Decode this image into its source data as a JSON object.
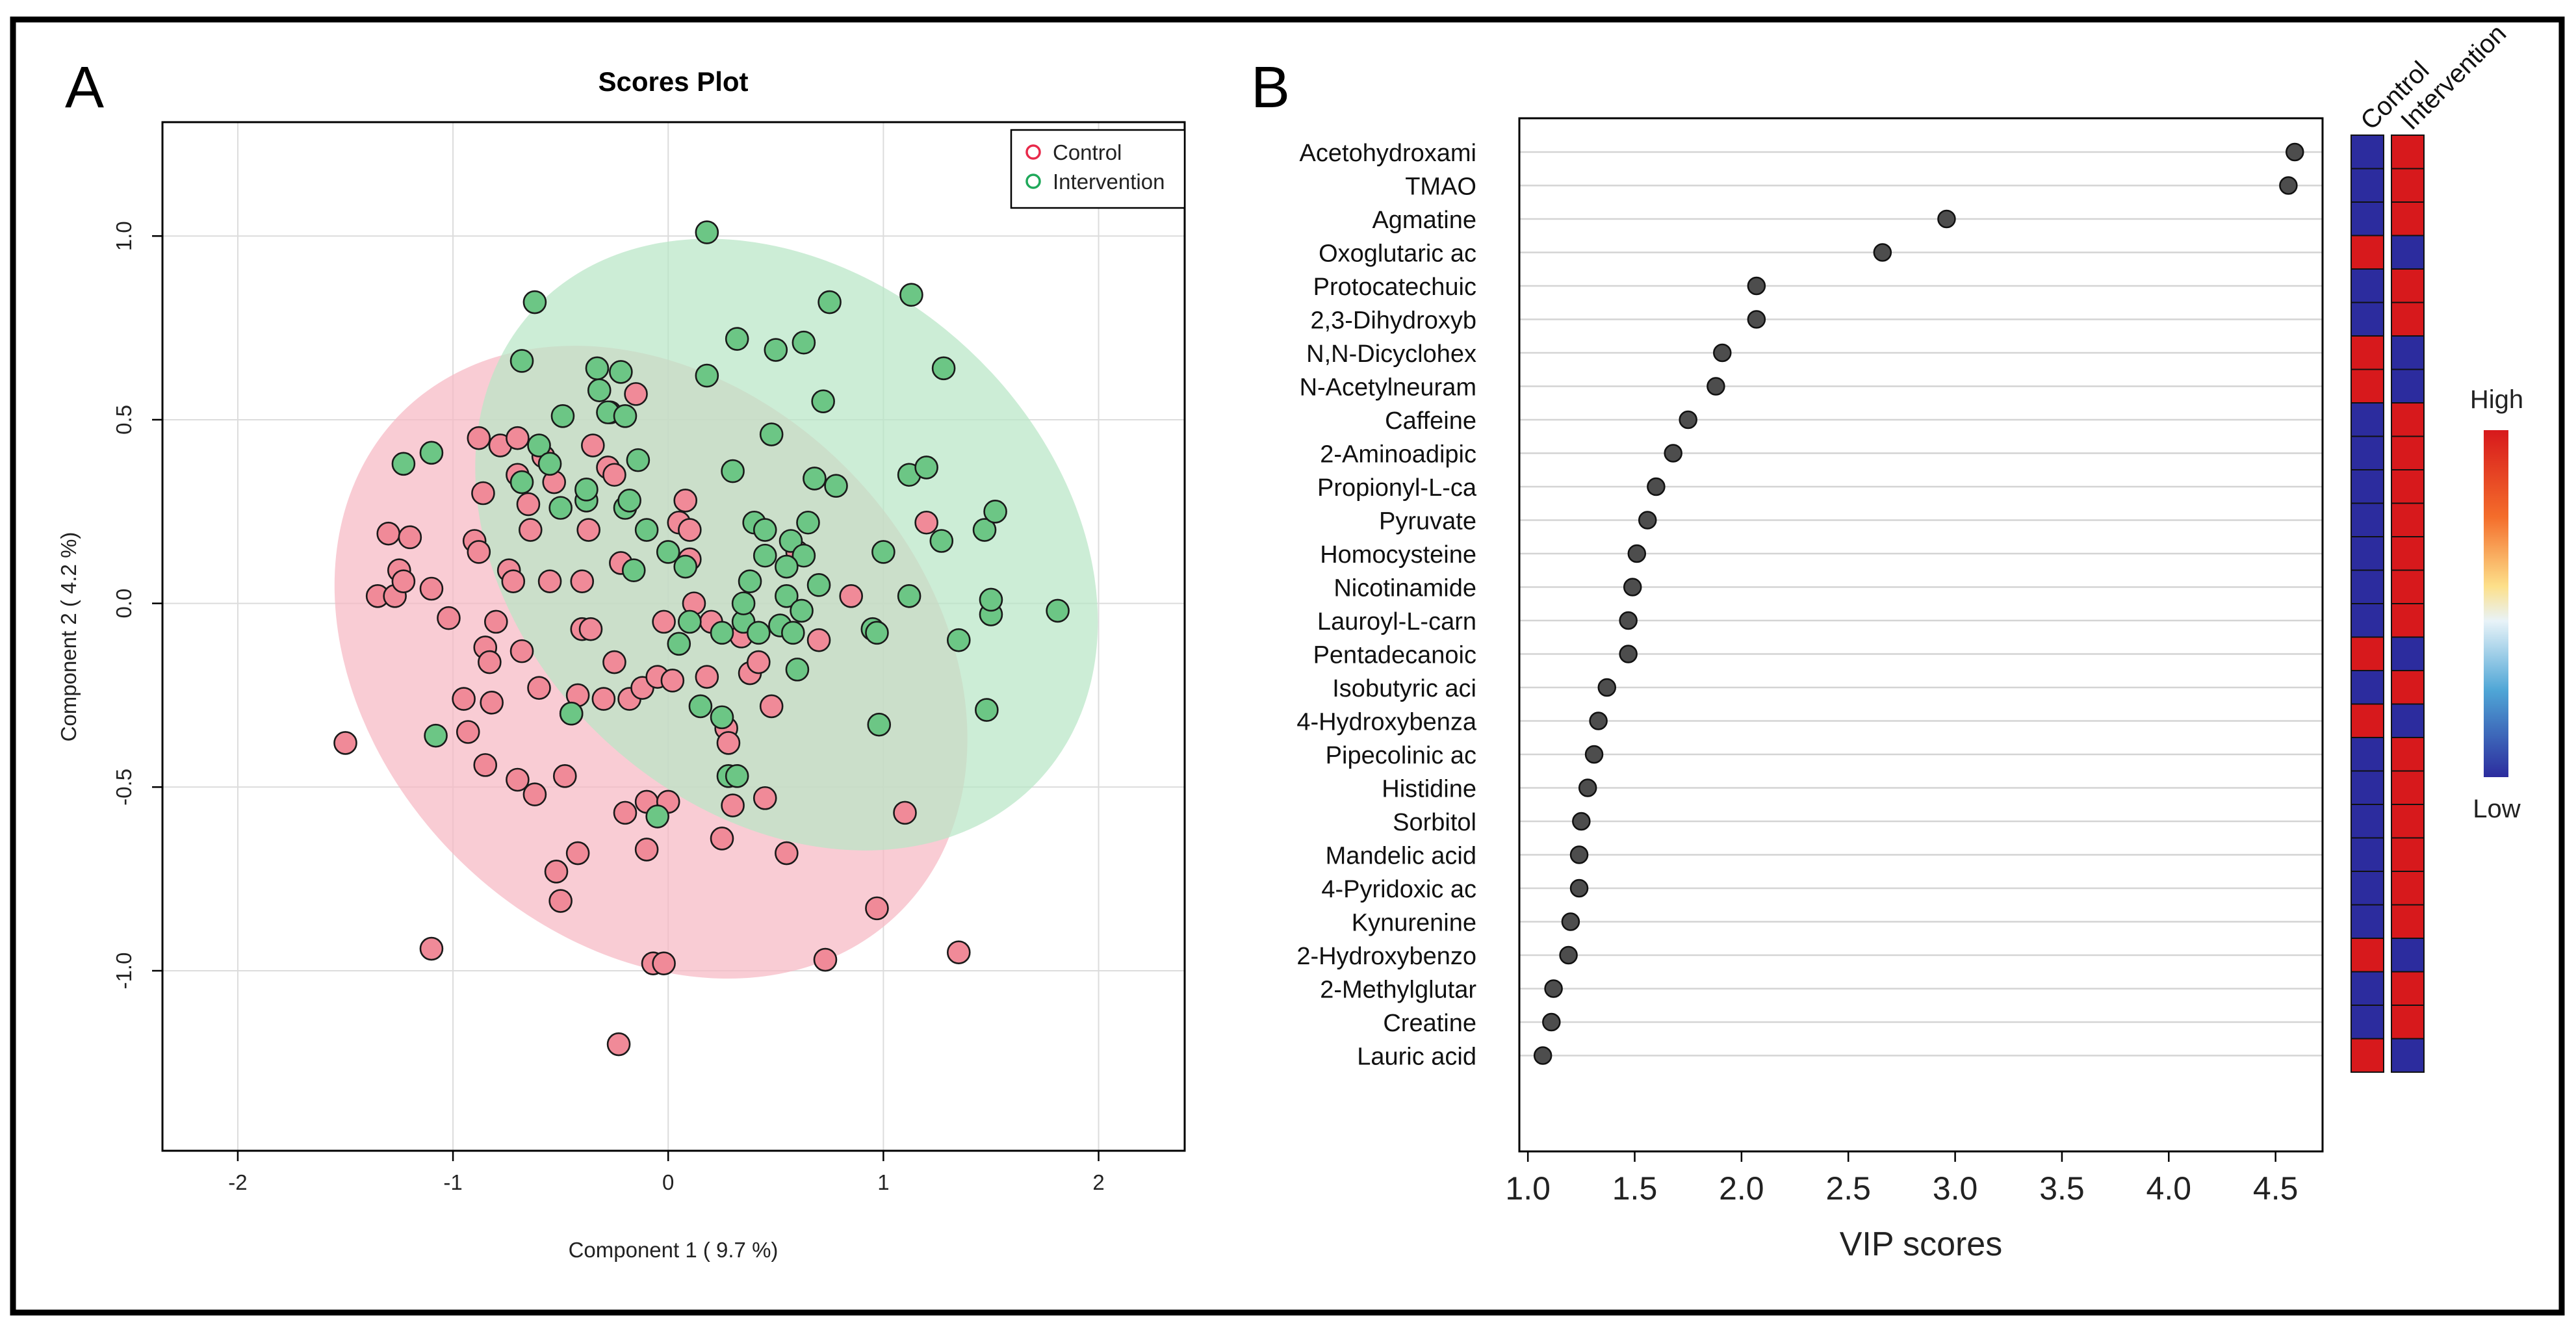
{
  "panel_a": {
    "letter": "A",
    "chart_data": {
      "type": "scatter",
      "title": "Scores Plot",
      "xlabel": "Component 1 ( 9.7 %)",
      "ylabel": "Component 2 ( 4.2 %)",
      "xlim": [
        -2.35,
        2.4
      ],
      "ylim": [
        -1.49,
        1.31
      ],
      "x_ticks": [
        -2,
        -1,
        0,
        1,
        2
      ],
      "x_tick_labels": [
        "-2",
        "-1",
        "0",
        "1",
        "2"
      ],
      "y_ticks": [
        -1.0,
        -0.5,
        0.0,
        0.5,
        1.0
      ],
      "y_tick_labels": [
        "-1.0",
        "-0.5",
        "0.0",
        "0.5",
        "1.0"
      ],
      "grid": true,
      "legend_position": "top-right",
      "legend": [
        "Control",
        "Intervention"
      ],
      "colors": {
        "control_stroke": "#e8294a",
        "control_fill": "#f08a98",
        "control_ellipse": "#f7b9c4",
        "intervention_stroke": "#1fa85a",
        "intervention_fill": "#6cc685",
        "intervention_ellipse": "#b9e6c6",
        "overlap": "#c8b49a"
      },
      "ellipses": [
        {
          "name": "Control",
          "cx": -0.08,
          "cy": -0.16,
          "rx": 1.28,
          "ry": 0.96,
          "angle_deg": -45
        },
        {
          "name": "Intervention",
          "cx": 0.55,
          "cy": 0.16,
          "rx": 1.24,
          "ry": 0.94,
          "angle_deg": -47
        }
      ],
      "series": [
        {
          "name": "Control",
          "points": [
            [
              -1.5,
              -0.38
            ],
            [
              -1.35,
              0.02
            ],
            [
              -1.3,
              0.19
            ],
            [
              -1.27,
              0.02
            ],
            [
              -1.25,
              0.09
            ],
            [
              -1.23,
              0.06
            ],
            [
              -1.2,
              0.18
            ],
            [
              -1.1,
              0.04
            ],
            [
              -1.1,
              -0.94
            ],
            [
              -1.02,
              -0.04
            ],
            [
              -0.95,
              -0.26
            ],
            [
              -0.93,
              -0.35
            ],
            [
              -0.9,
              0.17
            ],
            [
              -0.88,
              0.14
            ],
            [
              -0.88,
              0.45
            ],
            [
              -0.86,
              0.3
            ],
            [
              -0.85,
              -0.12
            ],
            [
              -0.85,
              -0.44
            ],
            [
              -0.83,
              -0.16
            ],
            [
              -0.82,
              -0.27
            ],
            [
              -0.8,
              -0.05
            ],
            [
              -0.78,
              0.43
            ],
            [
              -0.74,
              0.09
            ],
            [
              -0.72,
              0.06
            ],
            [
              -0.7,
              0.45
            ],
            [
              -0.7,
              -0.48
            ],
            [
              -0.68,
              -0.13
            ],
            [
              -0.65,
              0.27
            ],
            [
              -0.64,
              0.2
            ],
            [
              -0.62,
              -0.52
            ],
            [
              -0.6,
              -0.23
            ],
            [
              -0.58,
              0.4
            ],
            [
              -0.55,
              0.06
            ],
            [
              -0.53,
              0.33
            ],
            [
              -0.52,
              -0.73
            ],
            [
              -0.5,
              -0.81
            ],
            [
              -0.48,
              -0.47
            ],
            [
              -0.45,
              -0.3
            ],
            [
              -0.42,
              -0.25
            ],
            [
              -0.42,
              -0.68
            ],
            [
              -0.4,
              0.06
            ],
            [
              -0.4,
              -0.07
            ],
            [
              -0.37,
              0.2
            ],
            [
              -0.36,
              -0.07
            ],
            [
              -0.35,
              0.43
            ],
            [
              -0.3,
              -0.26
            ],
            [
              -0.28,
              0.37
            ],
            [
              -0.27,
              0.52
            ],
            [
              -0.25,
              -0.16
            ],
            [
              -0.23,
              -1.2
            ],
            [
              -0.22,
              0.11
            ],
            [
              -0.2,
              -0.57
            ],
            [
              -0.18,
              -0.26
            ],
            [
              -0.15,
              0.57
            ],
            [
              -0.12,
              -0.23
            ],
            [
              -0.1,
              -0.67
            ],
            [
              -0.1,
              -0.54
            ],
            [
              -0.07,
              -0.98
            ],
            [
              -0.05,
              -0.2
            ],
            [
              -0.02,
              -0.05
            ],
            [
              -0.02,
              -0.98
            ],
            [
              0,
              -0.54
            ],
            [
              0.02,
              -0.21
            ],
            [
              0.05,
              0.22
            ],
            [
              0.08,
              0.28
            ],
            [
              0.1,
              0.12
            ],
            [
              0.12,
              0.0
            ],
            [
              0.18,
              -0.2
            ],
            [
              0.2,
              -0.05
            ],
            [
              0.25,
              -0.64
            ],
            [
              0.27,
              -0.34
            ],
            [
              0.28,
              -0.38
            ],
            [
              0.3,
              -0.55
            ],
            [
              0.34,
              -0.09
            ],
            [
              0.38,
              -0.19
            ],
            [
              0.42,
              -0.16
            ],
            [
              0.48,
              -0.28
            ],
            [
              0.45,
              -0.53
            ],
            [
              0.55,
              -0.68
            ],
            [
              0.6,
              0.14
            ],
            [
              0.7,
              -0.1
            ],
            [
              0.73,
              -0.97
            ],
            [
              0.97,
              -0.83
            ],
            [
              0.85,
              0.02
            ],
            [
              1.1,
              -0.57
            ],
            [
              1.2,
              0.22
            ],
            [
              1.35,
              -0.95
            ],
            [
              -0.7,
              0.35
            ],
            [
              0.1,
              0.2
            ],
            [
              -0.25,
              0.35
            ]
          ]
        },
        {
          "name": "Intervention",
          "points": [
            [
              -1.23,
              0.38
            ],
            [
              -1.1,
              0.41
            ],
            [
              -1.08,
              -0.36
            ],
            [
              -0.68,
              0.66
            ],
            [
              -0.68,
              0.33
            ],
            [
              -0.62,
              0.82
            ],
            [
              -0.6,
              0.43
            ],
            [
              -0.55,
              0.38
            ],
            [
              -0.5,
              0.26
            ],
            [
              -0.49,
              0.51
            ],
            [
              -0.38,
              0.28
            ],
            [
              -0.38,
              0.31
            ],
            [
              -0.33,
              0.64
            ],
            [
              -0.32,
              0.58
            ],
            [
              -0.28,
              0.52
            ],
            [
              -0.22,
              0.63
            ],
            [
              -0.2,
              0.51
            ],
            [
              -0.2,
              0.26
            ],
            [
              -0.18,
              0.28
            ],
            [
              -0.16,
              0.09
            ],
            [
              -0.14,
              0.39
            ],
            [
              -0.1,
              0.2
            ],
            [
              -0.05,
              -0.58
            ],
            [
              0,
              0.14
            ],
            [
              0.05,
              -0.11
            ],
            [
              0.08,
              0.1
            ],
            [
              0.1,
              -0.05
            ],
            [
              0.15,
              -0.28
            ],
            [
              0.18,
              0.62
            ],
            [
              0.18,
              1.01
            ],
            [
              0.25,
              -0.31
            ],
            [
              0.28,
              -0.47
            ],
            [
              0.32,
              -0.47
            ],
            [
              0.3,
              0.36
            ],
            [
              0.32,
              0.72
            ],
            [
              0.35,
              -0.05
            ],
            [
              0.35,
              0.0
            ],
            [
              0.38,
              0.06
            ],
            [
              0.4,
              0.22
            ],
            [
              0.42,
              -0.08
            ],
            [
              0.45,
              0.2
            ],
            [
              0.48,
              0.46
            ],
            [
              0.5,
              0.69
            ],
            [
              0.52,
              -0.06
            ],
            [
              0.55,
              0.02
            ],
            [
              0.57,
              0.17
            ],
            [
              0.58,
              -0.08
            ],
            [
              0.6,
              -0.18
            ],
            [
              0.62,
              -0.02
            ],
            [
              0.63,
              0.71
            ],
            [
              0.65,
              0.22
            ],
            [
              0.68,
              0.34
            ],
            [
              0.7,
              0.05
            ],
            [
              0.72,
              0.55
            ],
            [
              0.75,
              0.82
            ],
            [
              0.78,
              0.32
            ],
            [
              0.95,
              -0.07
            ],
            [
              0.98,
              -0.33
            ],
            [
              0.97,
              -0.08
            ],
            [
              1.0,
              0.14
            ],
            [
              1.12,
              0.35
            ],
            [
              1.12,
              0.02
            ],
            [
              1.13,
              0.84
            ],
            [
              1.2,
              0.37
            ],
            [
              1.27,
              0.17
            ],
            [
              1.28,
              0.64
            ],
            [
              1.35,
              -0.1
            ],
            [
              1.47,
              0.2
            ],
            [
              1.48,
              -0.29
            ],
            [
              1.5,
              -0.03
            ],
            [
              1.52,
              0.25
            ],
            [
              1.5,
              0.01
            ],
            [
              1.81,
              -0.02
            ],
            [
              0.63,
              0.13
            ],
            [
              0.45,
              0.13
            ],
            [
              -0.45,
              -0.3
            ],
            [
              0.25,
              -0.08
            ],
            [
              0.55,
              0.1
            ]
          ]
        }
      ]
    }
  },
  "panel_b": {
    "letter": "B",
    "chart_data": {
      "type": "scatter",
      "title": "",
      "xlabel": "VIP scores",
      "ylabel": "",
      "xlim": [
        0.96,
        4.72
      ],
      "x_ticks": [
        1.0,
        1.5,
        2.0,
        2.5,
        3.0,
        3.5,
        4.0,
        4.5
      ],
      "x_tick_labels": [
        "1.0",
        "1.5",
        "2.0",
        "2.5",
        "3.0",
        "3.5",
        "4.0",
        "4.5"
      ],
      "grid": "horizontal",
      "labels": [
        "Acetohydroxami",
        "TMAO",
        "Agmatine",
        "Oxoglutaric ac",
        "Protocatechuic",
        "2,3-Dihydroxyb",
        "N,N-Dicyclohex",
        "N-Acetylneuram",
        "Caffeine",
        "2-Aminoadipic",
        "Propionyl-L-ca",
        "Pyruvate",
        "Homocysteine",
        "Nicotinamide",
        "Lauroyl-L-carn",
        "Pentadecanoic",
        "Isobutyric aci",
        "4-Hydroxybenza",
        "Pipecolinic ac",
        "Histidine",
        "Sorbitol",
        "Mandelic acid",
        "4-Pyridoxic ac",
        "Kynurenine",
        "2-Hydroxybenzo",
        "2-Methylglutar",
        "Creatine",
        "Lauric acid"
      ],
      "values": [
        4.59,
        4.56,
        2.96,
        2.66,
        2.07,
        2.07,
        1.91,
        1.88,
        1.75,
        1.68,
        1.6,
        1.56,
        1.51,
        1.49,
        1.47,
        1.47,
        1.37,
        1.33,
        1.31,
        1.28,
        1.25,
        1.24,
        1.24,
        1.2,
        1.19,
        1.12,
        1.11,
        1.07
      ],
      "point_color": "#4d4d4d",
      "heatmap": {
        "columns": [
          "Control",
          "Intervention"
        ],
        "levels": [
          "High",
          "Low"
        ],
        "high_color": "#d7191c",
        "low_color": "#2c2c9e",
        "rows": [
          [
            "Low",
            "High"
          ],
          [
            "Low",
            "High"
          ],
          [
            "Low",
            "High"
          ],
          [
            "High",
            "Low"
          ],
          [
            "Low",
            "High"
          ],
          [
            "Low",
            "High"
          ],
          [
            "High",
            "Low"
          ],
          [
            "High",
            "Low"
          ],
          [
            "Low",
            "High"
          ],
          [
            "Low",
            "High"
          ],
          [
            "Low",
            "High"
          ],
          [
            "Low",
            "High"
          ],
          [
            "Low",
            "High"
          ],
          [
            "Low",
            "High"
          ],
          [
            "Low",
            "High"
          ],
          [
            "High",
            "Low"
          ],
          [
            "Low",
            "High"
          ],
          [
            "High",
            "Low"
          ],
          [
            "Low",
            "High"
          ],
          [
            "Low",
            "High"
          ],
          [
            "Low",
            "High"
          ],
          [
            "Low",
            "High"
          ],
          [
            "Low",
            "High"
          ],
          [
            "Low",
            "High"
          ],
          [
            "High",
            "Low"
          ],
          [
            "Low",
            "High"
          ],
          [
            "Low",
            "High"
          ],
          [
            "High",
            "Low"
          ]
        ]
      },
      "colorbar": {
        "high_label": "High",
        "low_label": "Low"
      }
    }
  }
}
